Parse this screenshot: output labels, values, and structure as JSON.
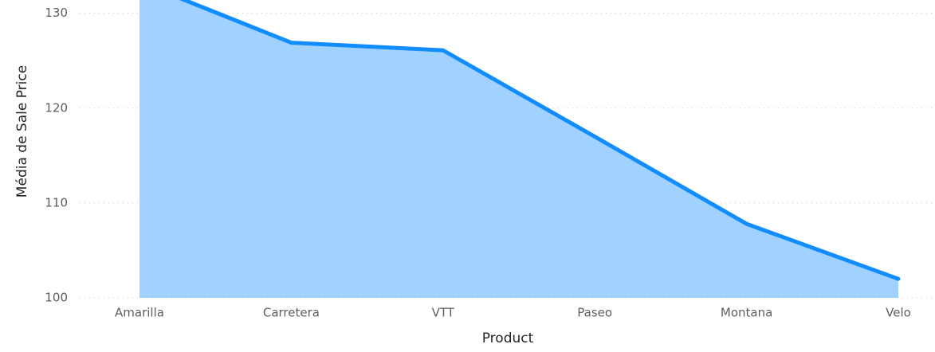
{
  "chart_data": {
    "type": "area",
    "x_label": "Product",
    "y_label": "Média de Sale Price",
    "categories": [
      "Amarilla",
      "Carretera",
      "VTT",
      "Paseo",
      "Montana",
      "Velo"
    ],
    "values": [
      133.3,
      126.9,
      126.1,
      117.0,
      107.8,
      102.0
    ],
    "color": "#118dff",
    "fill": "#a0d1ff",
    "ylim": [
      100,
      131.4
    ],
    "yticks": [
      100,
      110,
      120,
      130
    ],
    "grid": true
  }
}
